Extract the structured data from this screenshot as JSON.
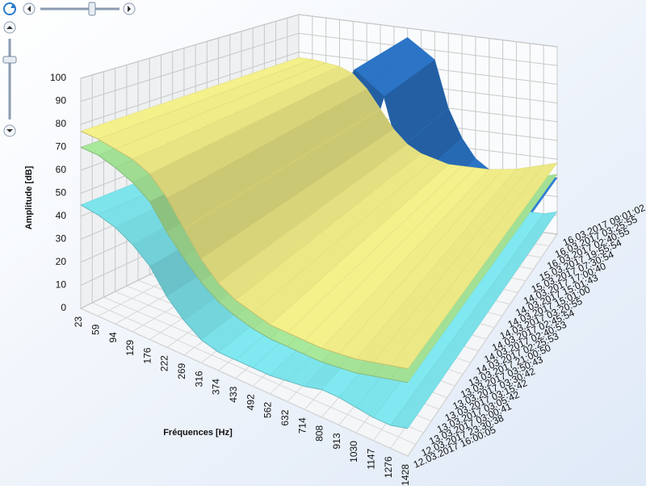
{
  "chart_data": {
    "type": "surface3d",
    "y_label": "Amplitude [dB]",
    "x_label": "Fréquences [Hz]",
    "categories": [
      "23",
      "59",
      "94",
      "129",
      "176",
      "222",
      "269",
      "316",
      "374",
      "433",
      "492",
      "562",
      "632",
      "714",
      "808",
      "913",
      "1030",
      "1147",
      "1276",
      "1428"
    ],
    "dates": [
      "12.03.2017 16:00:05",
      "12.03.2017 23:30:38",
      "13.03.2017 03:00:41",
      "13.03.2017 03:05:42",
      "13.03.2017 03:15:42",
      "13.03.2017 03:30:42",
      "13.03.2017 03:50:43",
      "13.03.2017 21:00:50",
      "14.03.2017 02:25:53",
      "14.03.2017 02:40:53",
      "14.03.2017 02:45:54",
      "14.03.2017 03:20:55",
      "14.03.2017 15:01:00",
      "14.03.2017 15:01:43",
      "14.03.2017 17:00:40",
      "15.03.2017 07:30:54",
      "15.03.2017 19:55:54",
      "16.03.2017 02:40:55",
      "16.03.2017 03:25:55",
      "16.03.2017 09:01:02"
    ],
    "series": [
      {
        "color": "#2f7fd8",
        "values": [
          60,
          58,
          55,
          50,
          45,
          40,
          55,
          80,
          95,
          90,
          85,
          60,
          45,
          35,
          30,
          28,
          28,
          28,
          30,
          30
        ]
      },
      {
        "color": "#7fe8f0",
        "values": [
          45,
          44,
          42,
          38,
          32,
          22,
          15,
          10,
          8,
          8,
          8,
          8,
          9,
          10,
          12,
          12,
          11,
          10,
          10,
          12
        ]
      },
      {
        "color": "#a8e89a",
        "values": [
          70,
          70,
          68,
          65,
          60,
          50,
          42,
          35,
          30,
          27,
          25,
          24,
          24,
          24,
          24,
          25,
          26,
          28,
          30,
          32
        ]
      },
      {
        "color": "#f4f08a",
        "values": [
          77,
          77,
          76,
          75,
          72,
          65,
          55,
          45,
          38,
          34,
          32,
          30,
          30,
          30,
          30,
          31,
          32,
          34,
          36,
          38
        ]
      }
    ],
    "ylim": [
      0,
      100
    ],
    "yticks": [
      0,
      10,
      20,
      30,
      40,
      50,
      60,
      70,
      80,
      90,
      100
    ],
    "grid": true
  }
}
